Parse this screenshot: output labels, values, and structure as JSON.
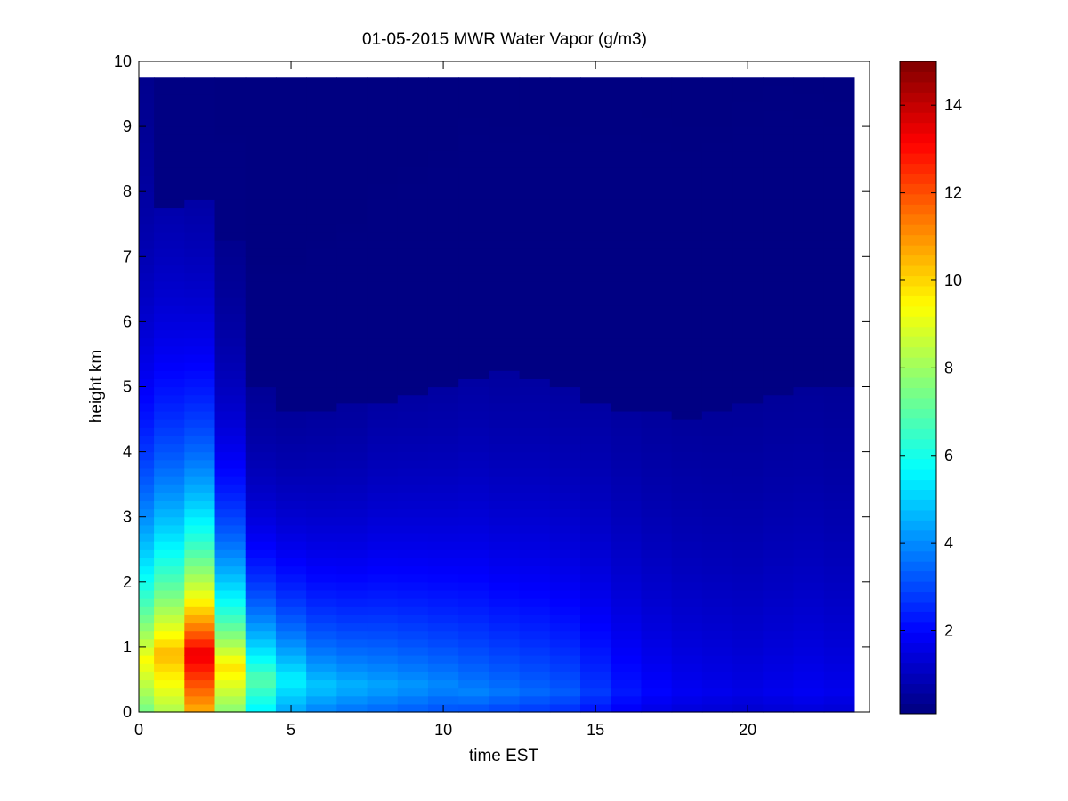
{
  "chart_data": {
    "type": "heatmap",
    "title": "01-05-2015 MWR Water Vapor (g/m3)",
    "xlabel": "time EST",
    "ylabel": "height km",
    "xlim": [
      0,
      24
    ],
    "ylim": [
      0,
      10
    ],
    "x_ticks": [
      0,
      5,
      10,
      15,
      20
    ],
    "y_ticks": [
      0,
      1,
      2,
      3,
      4,
      5,
      6,
      7,
      8,
      9,
      10
    ],
    "colorbar": {
      "colormap": "jet",
      "range": [
        0.1,
        15
      ],
      "ticks": [
        2,
        4,
        6,
        8,
        10,
        12,
        14
      ]
    },
    "data_extent": {
      "x": [
        0,
        23.5
      ],
      "y": [
        0,
        9.75
      ]
    },
    "grid": false,
    "time_hours": [
      0,
      1,
      2,
      3,
      4,
      5,
      6,
      7,
      8,
      9,
      10,
      11,
      12,
      13,
      14,
      15,
      16,
      17,
      18,
      19,
      20,
      21,
      22,
      23
    ],
    "surface_value": [
      9.4,
      10.5,
      13.5,
      9.8,
      7.0,
      5.6,
      4.9,
      4.6,
      4.4,
      4.2,
      4.0,
      3.9,
      3.7,
      3.5,
      3.3,
      2.8,
      2.3,
      2.0,
      1.8,
      1.7,
      1.6,
      1.7,
      1.8,
      1.7
    ],
    "peak_height_km": [
      0.8,
      0.9,
      0.9,
      0.7,
      0.5,
      0.5,
      0.4,
      0.4,
      0.4,
      0.4,
      0.4,
      0.3,
      0.3,
      0.3,
      0.3,
      0.3,
      0.3,
      0.3,
      0.3,
      0.3,
      0.3,
      0.3,
      0.3,
      0.3
    ],
    "decay_scale_km": [
      2.6,
      2.6,
      2.3,
      1.9,
      1.6,
      1.7,
      1.9,
      2.0,
      2.2,
      2.3,
      2.4,
      2.6,
      2.6,
      2.7,
      2.7,
      2.9,
      3.1,
      3.2,
      3.3,
      3.4,
      3.6,
      3.6,
      3.5,
      3.5
    ],
    "moist_top_km": [
      9.75,
      7.7,
      7.9,
      7.3,
      5.0,
      4.6,
      4.6,
      4.7,
      4.8,
      4.9,
      5.0,
      5.1,
      5.2,
      5.1,
      5.0,
      4.7,
      4.6,
      4.6,
      4.5,
      4.6,
      4.8,
      4.9,
      5.0,
      5.0
    ]
  }
}
